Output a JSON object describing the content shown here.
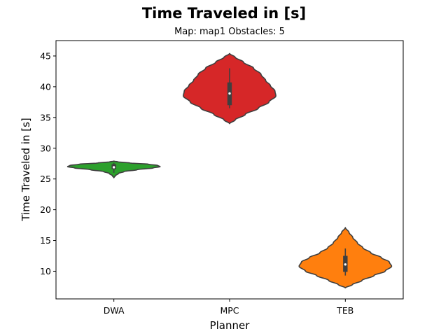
{
  "chart_data": {
    "type": "violin",
    "title": "Time Traveled in [s]",
    "subtitle": "Map: map1 Obstacles: 5",
    "xlabel": "Planner",
    "ylabel": "Time Traveled in [s]",
    "categories": [
      "DWA",
      "MPC",
      "TEB"
    ],
    "ylim": [
      5.5,
      47.5
    ],
    "yticks": [
      10,
      15,
      20,
      25,
      30,
      35,
      40,
      45
    ],
    "grid": false,
    "series": [
      {
        "category": "DWA",
        "color": "#2ca02c",
        "min": 25.2,
        "max": 27.9,
        "q1": 26.6,
        "median": 26.9,
        "q3": 27.4,
        "whisker_low": 26.0,
        "whisker_high": 27.6,
        "profile": [
          [
            25.2,
            0.0
          ],
          [
            25.5,
            0.03
          ],
          [
            25.9,
            0.1
          ],
          [
            26.2,
            0.22
          ],
          [
            26.5,
            0.5
          ],
          [
            26.8,
            0.85
          ],
          [
            27.0,
            1.0
          ],
          [
            27.2,
            0.95
          ],
          [
            27.4,
            0.75
          ],
          [
            27.6,
            0.35
          ],
          [
            27.8,
            0.08
          ],
          [
            27.9,
            0.0
          ]
        ]
      },
      {
        "category": "MPC",
        "color": "#d62728",
        "min": 34.0,
        "max": 45.4,
        "q1": 37.0,
        "median": 38.9,
        "q3": 40.7,
        "whisker_low": 36.5,
        "whisker_high": 43.0,
        "profile": [
          [
            34.0,
            0.0
          ],
          [
            34.6,
            0.12
          ],
          [
            35.5,
            0.34
          ],
          [
            36.5,
            0.62
          ],
          [
            37.5,
            0.85
          ],
          [
            38.5,
            1.0
          ],
          [
            39.3,
            0.98
          ],
          [
            40.2,
            0.88
          ],
          [
            41.0,
            0.78
          ],
          [
            42.0,
            0.68
          ],
          [
            43.0,
            0.52
          ],
          [
            44.0,
            0.3
          ],
          [
            44.8,
            0.12
          ],
          [
            45.4,
            0.0
          ]
        ]
      },
      {
        "category": "TEB",
        "color": "#ff7f0e",
        "min": 7.3,
        "max": 17.1,
        "q1": 9.9,
        "median": 11.1,
        "q3": 12.5,
        "whisker_low": 9.3,
        "whisker_high": 13.7,
        "profile": [
          [
            7.3,
            0.0
          ],
          [
            7.8,
            0.15
          ],
          [
            8.5,
            0.36
          ],
          [
            9.3,
            0.62
          ],
          [
            10.0,
            0.86
          ],
          [
            10.8,
            1.0
          ],
          [
            11.5,
            0.95
          ],
          [
            12.2,
            0.78
          ],
          [
            13.0,
            0.55
          ],
          [
            13.8,
            0.38
          ],
          [
            14.6,
            0.26
          ],
          [
            15.5,
            0.16
          ],
          [
            16.3,
            0.08
          ],
          [
            17.1,
            0.0
          ]
        ]
      }
    ]
  }
}
